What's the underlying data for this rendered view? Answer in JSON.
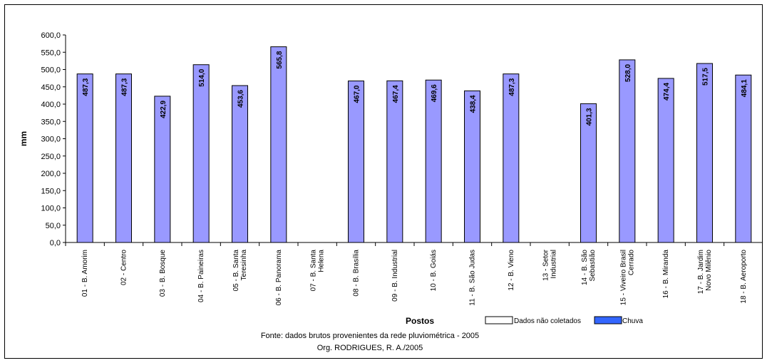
{
  "chart_data": {
    "type": "bar",
    "categories": [
      "01 - B. Amorim",
      "02 - Centro",
      "03 - B. Bosque",
      "04 - B. Paineiras",
      "05 - B. Santa Teresinha",
      "06 - B. Panorama",
      "07 - B. Santa Helena",
      "08 - B. Brasília",
      "09 - B. Industrial",
      "10 - B. Goiás",
      "11 - B. São Judas",
      "12 - B. Vieno",
      "13 - Setor Industrial",
      "14 - B. São Sebastião",
      "15 - Viveiro Brasil Cerrado",
      "16 - B. Miranda",
      "17 - B. Jardim Novo Milênio",
      "18 - B. Aeroporto"
    ],
    "category_lines": [
      [
        "01 - B. Amorim"
      ],
      [
        "02 - Centro"
      ],
      [
        "03 - B. Bosque"
      ],
      [
        "04 - B. Paineiras"
      ],
      [
        "05 - B. Santa",
        "Teresinha"
      ],
      [
        "06 - B. Panorama"
      ],
      [
        "07 - B. Santa",
        "Helena"
      ],
      [
        "08 - B. Brasília"
      ],
      [
        "09 - B. Industrial"
      ],
      [
        "10 - B. Goiás"
      ],
      [
        "11 - B. São Judas"
      ],
      [
        "12 - B. Vieno"
      ],
      [
        "13 - Setor",
        "Industrial"
      ],
      [
        "14 - B. São",
        "Sebastião"
      ],
      [
        "15 - Viveiro Brasil",
        "Cerrado"
      ],
      [
        "16 - B. Miranda"
      ],
      [
        "17 - B. Jardim",
        "Novo Milênio"
      ],
      [
        "18 - B. Aeroporto"
      ]
    ],
    "series": [
      {
        "name": "Chuva",
        "color": "#9999FF",
        "values": [
          487.3,
          487.3,
          422.9,
          514.0,
          453.6,
          565.8,
          null,
          467.0,
          467.4,
          469.6,
          438.4,
          487.3,
          null,
          401.3,
          528.0,
          474.4,
          517.5,
          484.1
        ],
        "labels": [
          "487,3",
          "487,3",
          "422,9",
          "514,0",
          "453,6",
          "565,8",
          null,
          "467,0",
          "467,4",
          "469,6",
          "438,4",
          "487,3",
          null,
          "401,3",
          "528,0",
          "474,4",
          "517,5",
          "484,1"
        ]
      }
    ],
    "ylim": [
      0,
      600
    ],
    "yticks": [
      0,
      50,
      100,
      150,
      200,
      250,
      300,
      350,
      400,
      450,
      500,
      550,
      600
    ],
    "ytick_labels": [
      "0,0",
      "50,0",
      "100,0",
      "150,0",
      "200,0",
      "250,0",
      "300,0",
      "350,0",
      "400,0",
      "450,0",
      "500,0",
      "550,0",
      "600,0"
    ],
    "xlabel": "Postos",
    "ylabel": "mm",
    "grid": false,
    "legend": {
      "placement": "bottom",
      "entries": [
        {
          "label": "Dados não coletados",
          "color": "#FFFFFF"
        },
        {
          "label": "Chuva",
          "color": "#3366FF"
        }
      ]
    },
    "source_lines": [
      "Fonte: dados brutos provenientes da rede pluviométrica - 2005",
      "Org. RODRIGUES, R. A./2005"
    ]
  }
}
